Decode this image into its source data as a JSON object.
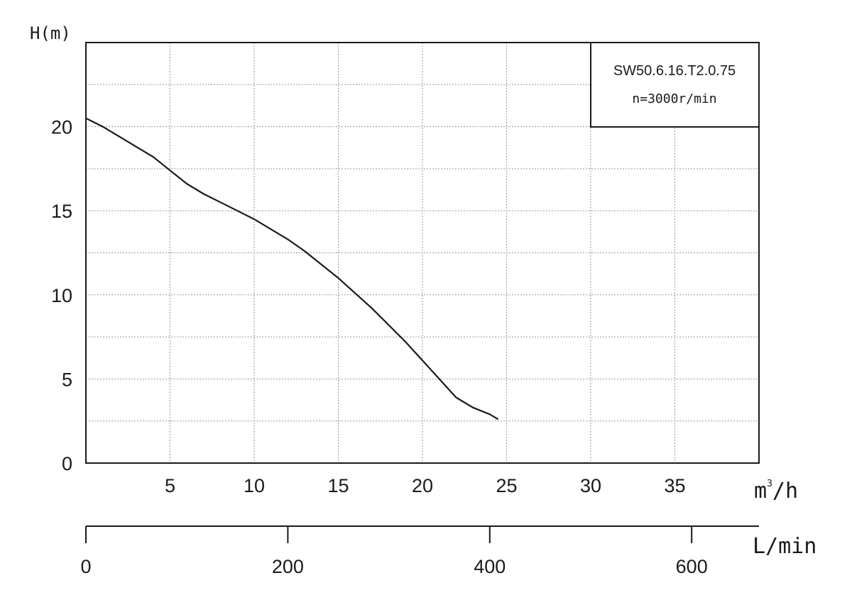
{
  "chart_data": {
    "type": "line",
    "ylabel": "H(m)",
    "xlabel": "m³/h",
    "xlabel_base": "m",
    "xlabel_sup": "3",
    "xlabel_rest": "/h",
    "secondary_xlabel": "L/min",
    "xlim": [
      0,
      40
    ],
    "ylim": [
      0,
      25
    ],
    "x_ticks": [
      "5",
      "10",
      "15",
      "20",
      "25",
      "30",
      "35"
    ],
    "y_ticks": [
      "0",
      "5",
      "10",
      "15",
      "20"
    ],
    "secondary_x_ticks": [
      "0",
      "200",
      "400",
      "600"
    ],
    "secondary_xlim": [
      0,
      666.67
    ],
    "grid": true,
    "legend_placement": "top-right",
    "legend": {
      "model": "SW50.6.16.T2.0.75",
      "speed": "n=3000r/min"
    },
    "series": [
      {
        "x": [
          0,
          1,
          2,
          3,
          4,
          5,
          6,
          7,
          8,
          9,
          10,
          11,
          12,
          13,
          14,
          15,
          16,
          17,
          18,
          19,
          20,
          21,
          22,
          23,
          24,
          24.5
        ],
        "y": [
          20.5,
          20.0,
          19.4,
          18.8,
          18.2,
          17.4,
          16.6,
          16.0,
          15.5,
          15.0,
          14.5,
          13.9,
          13.3,
          12.6,
          11.8,
          11.0,
          10.1,
          9.2,
          8.2,
          7.2,
          6.1,
          5.0,
          3.9,
          3.3,
          2.9,
          2.6
        ]
      }
    ]
  }
}
